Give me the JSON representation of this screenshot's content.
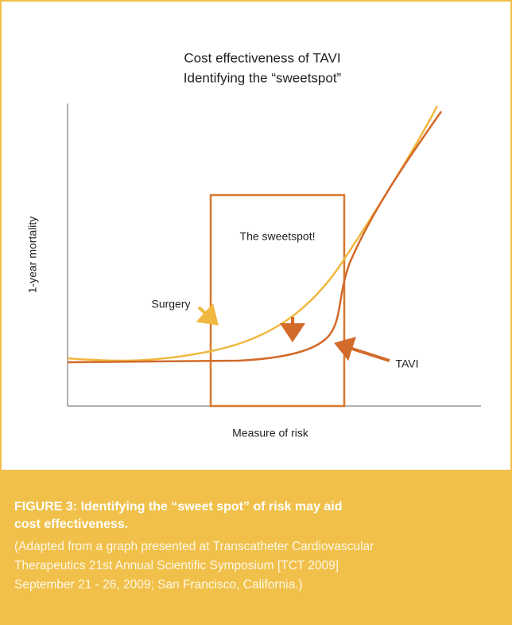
{
  "figure": {
    "title_lines": [
      "Cost effectiveness of TAVI",
      "Identifying the “sweetspot”"
    ],
    "y_axis_label": "1-year mortality",
    "x_axis_label": "Measure of risk",
    "box_label": "The sweetspot!",
    "curve_labels": [
      "Surgery",
      "TAVI"
    ]
  },
  "caption": {
    "heading_lines": [
      "FIGURE 3: Identifying the “sweet spot” of risk may aid",
      "cost effectiveness."
    ],
    "body_lines": [
      "(Adapted from a graph presented at Transcatheter Cardiovascular",
      "Therapeutics 21st Annual Scientific Symposium [TCT 2009]",
      "September 21 - 26, 2009; San Francisco, California.)"
    ]
  }
}
